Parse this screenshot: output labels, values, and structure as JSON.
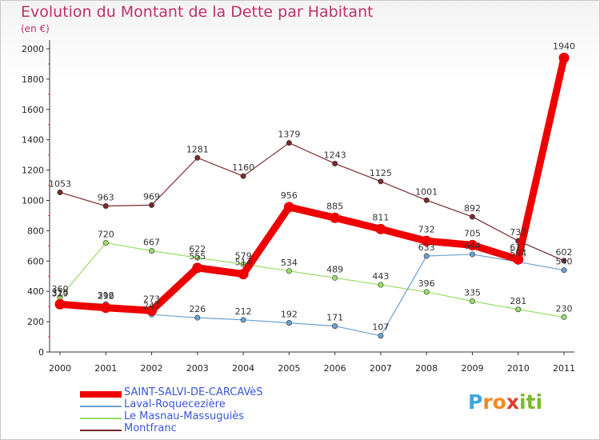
{
  "title": "Evolution du Montant de la Dette par Habitant",
  "subtitle": "(en €)",
  "logo": {
    "letters": [
      "P",
      "r",
      "o",
      "x",
      "i",
      "t",
      "i"
    ],
    "colors": [
      "#3fa5e0",
      "#f28b22",
      "#f28b22",
      "#e23b2e",
      "#79b92e",
      "#79b92e",
      "#79b92e"
    ]
  },
  "chart_data": {
    "type": "line",
    "x": [
      "2000",
      "2001",
      "2002",
      "2003",
      "2004",
      "2005",
      "2006",
      "2007",
      "2008",
      "2009",
      "2010",
      "2011"
    ],
    "ylim": [
      0,
      2000
    ],
    "yticks": [
      0,
      200,
      400,
      600,
      800,
      1000,
      1200,
      1400,
      1600,
      1800,
      2000
    ],
    "grid": false,
    "legend_position": "bottom-left",
    "series": [
      {
        "name": "Montfranc",
        "color": "#7a2a2e",
        "width": 1.2,
        "values": [
          1053,
          963,
          969,
          1281,
          1160,
          1379,
          1243,
          1125,
          1001,
          892,
          733,
          602
        ],
        "labels": [
          "1053",
          "963",
          "969",
          "1281",
          "1160",
          "1379",
          "1243",
          "1125",
          "1001",
          "892",
          "733",
          "602"
        ]
      },
      {
        "name": "Le Masnau-Massuguiès",
        "color": "#99dd66",
        "width": 1.2,
        "values": [
          360,
          720,
          667,
          622,
          579,
          534,
          489,
          443,
          396,
          335,
          281,
          230
        ],
        "labels": [
          "360",
          "720",
          "667",
          "622",
          "579",
          "534",
          "489",
          "443",
          "396",
          "335",
          "281",
          "230"
        ]
      },
      {
        "name": "Laval-Roquecezière",
        "color": "#6aa0d0",
        "width": 1.2,
        "values": [
          329,
          316,
          247,
          226,
          212,
          192,
          171,
          107,
          633,
          644,
          594,
          540
        ],
        "labels": [
          "329",
          "316",
          "247",
          "226",
          "212",
          "192",
          "171",
          "107",
          "633",
          "644",
          "594",
          "540"
        ]
      },
      {
        "name": "SAINT-SALVI-DE-CARCAVèS",
        "color": "#ee0000",
        "width": 9,
        "values": [
          315,
          292,
          273,
          555,
          514,
          956,
          885,
          811,
          732,
          705,
          611,
          1940
        ],
        "labels": [
          "315",
          "292",
          "273",
          "555",
          "514",
          "956",
          "885",
          "811",
          "732",
          "705",
          "611",
          "1940"
        ]
      }
    ],
    "legend_order": [
      "SAINT-SALVI-DE-CARCAVèS",
      "Laval-Roquecezière",
      "Le Masnau-Massuguiès",
      "Montfranc"
    ]
  }
}
